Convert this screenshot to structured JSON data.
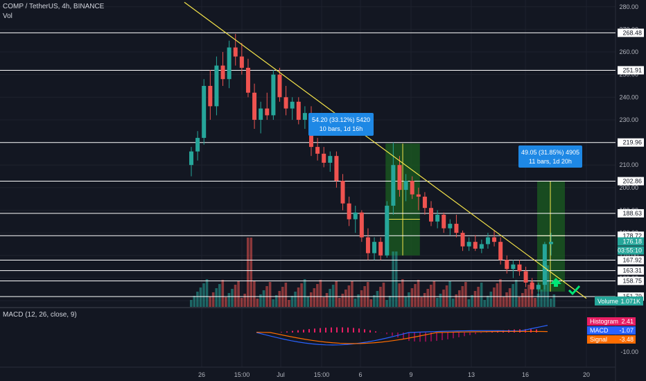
{
  "header": {
    "symbol_line": "COMP / TetherUS, 4h, BINANCE",
    "vol_label": "Vol",
    "macd_label": "MACD (12, 26, close, 9)"
  },
  "price_axis": {
    "ticks": [
      "280.00",
      "270.00",
      "260.00",
      "250.00",
      "240.00",
      "230.00",
      "220.00",
      "210.00",
      "200.00",
      "190.00",
      "180.00",
      "170.00",
      "160.00",
      "150.00"
    ]
  },
  "time_axis": {
    "ticks": [
      "26",
      "15:00",
      "Jul",
      "15:00",
      "6",
      "9",
      "13",
      "16",
      "20"
    ]
  },
  "levels": [
    "268.48",
    "251.91",
    "219.96",
    "202.86",
    "188.63",
    "178.72",
    "167.92",
    "163.31",
    "158.75",
    "151.79"
  ],
  "current_price": {
    "price": "176.18",
    "countdown": "03:55:10"
  },
  "measure_boxes": [
    {
      "line1": "54.20 (33.12%) 5420",
      "line2": "10 bars, 1d 16h"
    },
    {
      "line1": "49.05 (31.85%) 4905",
      "line2": "11 bars, 1d 20h"
    }
  ],
  "volume_badge": {
    "label": "Volume",
    "value": "1.071K"
  },
  "macd": {
    "histogram": {
      "label": "Histogram",
      "value": "2.41",
      "color": "#e91e63"
    },
    "macd": {
      "label": "MACD",
      "value": "-1.07",
      "color": "#2962ff"
    },
    "signal": {
      "label": "Signal",
      "value": "-3.48",
      "color": "#ff6d00"
    },
    "axis_label": "-10.00"
  },
  "colors": {
    "background": "#131722",
    "up": "#26a69a",
    "down": "#ef5350",
    "trendline": "#f5e44a",
    "level_line": "#ffffff",
    "measure_fill": "#1b5e20",
    "measure_label": "#1e88e5",
    "arrow": "#00e676"
  },
  "icons": [
    "up-arrow-icon",
    "checkmark-icon"
  ],
  "chart_data": {
    "type": "candlestick",
    "ylim": [
      150,
      283
    ],
    "levels": [
      268.48,
      251.91,
      219.96,
      202.86,
      188.63,
      178.72,
      167.92,
      163.31,
      158.75,
      151.79
    ],
    "last_price": 176.18,
    "candles": [
      {
        "o": 210,
        "h": 218,
        "l": 205,
        "c": 216
      },
      {
        "o": 216,
        "h": 225,
        "l": 212,
        "c": 222
      },
      {
        "o": 222,
        "h": 248,
        "l": 219,
        "c": 245
      },
      {
        "o": 245,
        "h": 252,
        "l": 230,
        "c": 236
      },
      {
        "o": 236,
        "h": 258,
        "l": 232,
        "c": 254
      },
      {
        "o": 254,
        "h": 260,
        "l": 245,
        "c": 248
      },
      {
        "o": 248,
        "h": 265,
        "l": 244,
        "c": 262
      },
      {
        "o": 262,
        "h": 268,
        "l": 254,
        "c": 258
      },
      {
        "o": 258,
        "h": 264,
        "l": 250,
        "c": 253
      },
      {
        "o": 253,
        "h": 257,
        "l": 240,
        "c": 242
      },
      {
        "o": 242,
        "h": 246,
        "l": 226,
        "c": 230
      },
      {
        "o": 230,
        "h": 238,
        "l": 224,
        "c": 235
      },
      {
        "o": 235,
        "h": 242,
        "l": 230,
        "c": 232
      },
      {
        "o": 232,
        "h": 252,
        "l": 230,
        "c": 250
      },
      {
        "o": 250,
        "h": 253,
        "l": 238,
        "c": 240
      },
      {
        "o": 240,
        "h": 245,
        "l": 232,
        "c": 235
      },
      {
        "o": 235,
        "h": 240,
        "l": 230,
        "c": 238
      },
      {
        "o": 238,
        "h": 240,
        "l": 228,
        "c": 230
      },
      {
        "o": 230,
        "h": 236,
        "l": 226,
        "c": 233
      },
      {
        "o": 233,
        "h": 236,
        "l": 214,
        "c": 218
      },
      {
        "o": 218,
        "h": 222,
        "l": 212,
        "c": 215
      },
      {
        "o": 215,
        "h": 218,
        "l": 209,
        "c": 211
      },
      {
        "o": 211,
        "h": 216,
        "l": 207,
        "c": 214
      },
      {
        "o": 214,
        "h": 216,
        "l": 200,
        "c": 203
      },
      {
        "o": 203,
        "h": 206,
        "l": 190,
        "c": 193
      },
      {
        "o": 193,
        "h": 196,
        "l": 183,
        "c": 186
      },
      {
        "o": 186,
        "h": 192,
        "l": 180,
        "c": 189
      },
      {
        "o": 189,
        "h": 190,
        "l": 176,
        "c": 178
      },
      {
        "o": 178,
        "h": 182,
        "l": 168,
        "c": 171
      },
      {
        "o": 171,
        "h": 178,
        "l": 168,
        "c": 176
      },
      {
        "o": 176,
        "h": 178,
        "l": 168,
        "c": 170
      },
      {
        "o": 170,
        "h": 194,
        "l": 169,
        "c": 192
      },
      {
        "o": 192,
        "h": 220,
        "l": 188,
        "c": 210
      },
      {
        "o": 210,
        "h": 214,
        "l": 196,
        "c": 199
      },
      {
        "o": 199,
        "h": 206,
        "l": 194,
        "c": 203
      },
      {
        "o": 203,
        "h": 205,
        "l": 195,
        "c": 197
      },
      {
        "o": 197,
        "h": 200,
        "l": 190,
        "c": 196
      },
      {
        "o": 196,
        "h": 198,
        "l": 188,
        "c": 191
      },
      {
        "o": 191,
        "h": 194,
        "l": 183,
        "c": 185
      },
      {
        "o": 185,
        "h": 190,
        "l": 182,
        "c": 188
      },
      {
        "o": 188,
        "h": 189,
        "l": 180,
        "c": 182
      },
      {
        "o": 182,
        "h": 186,
        "l": 179,
        "c": 184
      },
      {
        "o": 184,
        "h": 188,
        "l": 178,
        "c": 180
      },
      {
        "o": 180,
        "h": 181,
        "l": 172,
        "c": 174
      },
      {
        "o": 174,
        "h": 178,
        "l": 172,
        "c": 176
      },
      {
        "o": 176,
        "h": 179,
        "l": 172,
        "c": 173
      },
      {
        "o": 173,
        "h": 177,
        "l": 171,
        "c": 175
      },
      {
        "o": 175,
        "h": 180,
        "l": 173,
        "c": 178
      },
      {
        "o": 178,
        "h": 181,
        "l": 174,
        "c": 176
      },
      {
        "o": 176,
        "h": 178,
        "l": 166,
        "c": 168
      },
      {
        "o": 168,
        "h": 170,
        "l": 162,
        "c": 164
      },
      {
        "o": 164,
        "h": 168,
        "l": 160,
        "c": 166
      },
      {
        "o": 166,
        "h": 168,
        "l": 161,
        "c": 163
      },
      {
        "o": 163,
        "h": 165,
        "l": 156,
        "c": 158
      },
      {
        "o": 158,
        "h": 160,
        "l": 153,
        "c": 155
      },
      {
        "o": 155,
        "h": 158,
        "l": 152,
        "c": 157
      },
      {
        "o": 157,
        "h": 176,
        "l": 155,
        "c": 175
      },
      {
        "o": 175,
        "h": 180,
        "l": 170,
        "c": 176
      }
    ],
    "trendline": [
      {
        "x": "26",
        "y": 282
      },
      {
        "x": "20",
        "y": 151
      }
    ],
    "volume_current": "1.071K",
    "macd": {
      "histogram": 2.41,
      "macd": -1.07,
      "signal": -3.48
    }
  }
}
